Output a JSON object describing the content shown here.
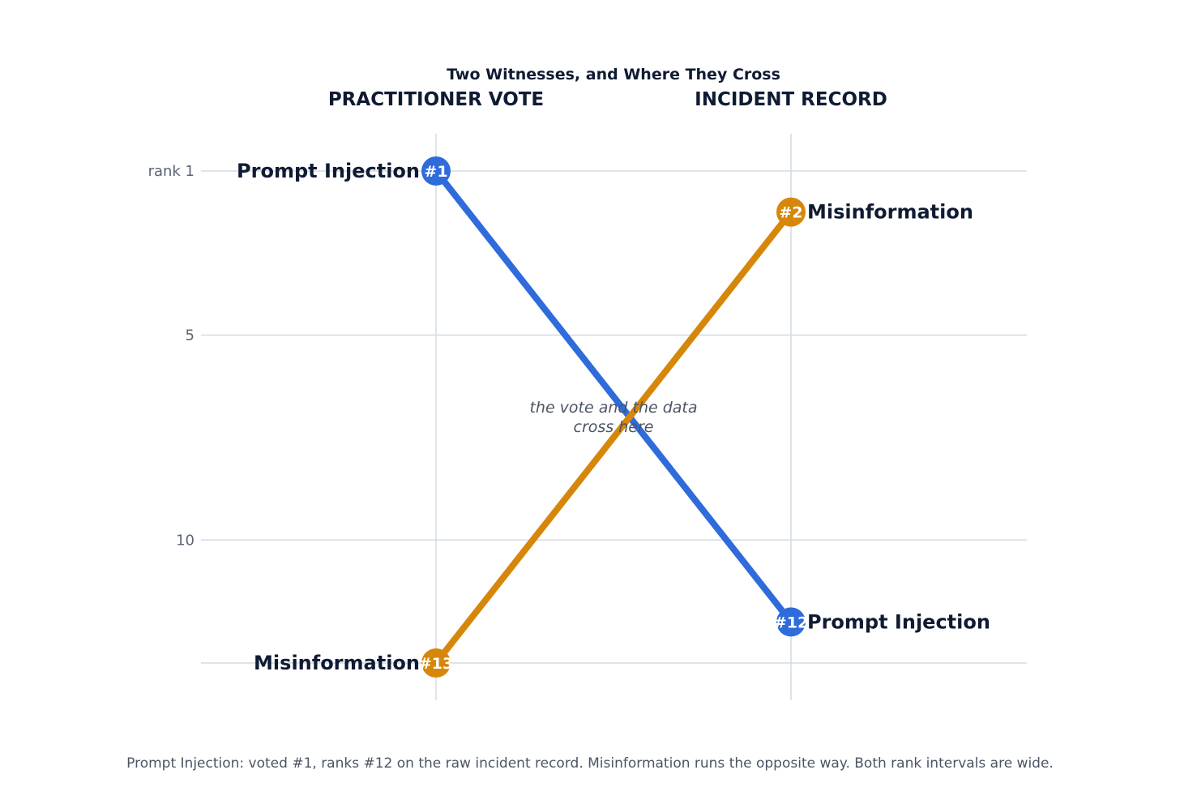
{
  "chart_data": {
    "type": "line",
    "title": "Two Witnesses, and Where They Cross",
    "columns": [
      "PRACTITIONER VOTE",
      "INCIDENT RECORD"
    ],
    "y_ticks": [
      {
        "value": 1,
        "label": "rank 1"
      },
      {
        "value": 5,
        "label": "5"
      },
      {
        "value": 10,
        "label": "10"
      },
      {
        "value": 13,
        "label": ""
      }
    ],
    "ylim": [
      1,
      13
    ],
    "y_inverted": true,
    "grid": true,
    "series": [
      {
        "name": "Prompt Injection",
        "color": "#2f6bdb",
        "values": [
          1,
          12
        ],
        "badges": [
          "#1",
          "#12"
        ]
      },
      {
        "name": "Misinformation",
        "color": "#d6870a",
        "values": [
          13,
          2
        ],
        "badges": [
          "#13",
          "#2"
        ]
      }
    ],
    "annotation": [
      "the vote and the data",
      "cross here"
    ]
  },
  "footer": "Prompt Injection: voted #1, ranks #12 on the raw incident record. Misinformation runs the opposite way. Both rank intervals are wide."
}
